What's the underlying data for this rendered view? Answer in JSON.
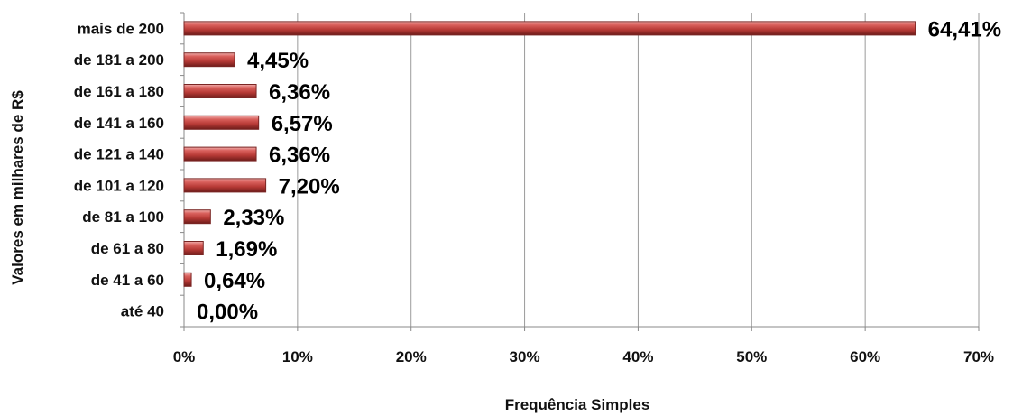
{
  "chart_data": {
    "type": "bar",
    "orientation": "horizontal",
    "categories": [
      "até 40",
      "de 41 a 60",
      "de 61 a 80",
      "de 81 a 100",
      "de 101 a 120",
      "de 121 a 140",
      "de 141 a 160",
      "de 161 a 180",
      "de 181 a 200",
      "mais de 200"
    ],
    "values": [
      0.0,
      0.64,
      1.69,
      2.33,
      7.2,
      6.36,
      6.57,
      6.36,
      4.45,
      64.41
    ],
    "data_labels": [
      "0,00%",
      "0,64%",
      "1,69%",
      "2,33%",
      "7,20%",
      "6,36%",
      "6,57%",
      "6,36%",
      "4,45%",
      "64,41%"
    ],
    "xlabel": "Frequência Simples",
    "ylabel": "Valores em milhares de R$",
    "xlim": [
      0,
      70
    ],
    "xticks": [
      0,
      10,
      20,
      30,
      40,
      50,
      60,
      70
    ],
    "xtick_labels": [
      "0%",
      "10%",
      "20%",
      "30%",
      "40%",
      "50%",
      "60%",
      "70%"
    ],
    "grid": true,
    "legend": false,
    "bar_color": "#c0504d"
  }
}
